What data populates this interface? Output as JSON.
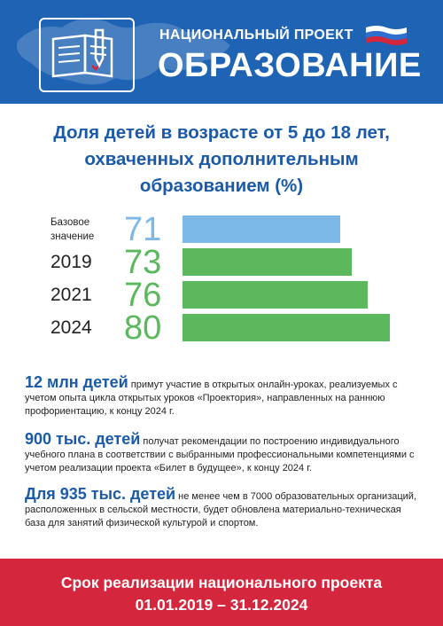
{
  "header": {
    "subtitle": "НАЦИОНАЛЬНЫЙ ПРОЕКТ",
    "title": "ОБРАЗОВАНИЕ",
    "colors": {
      "background": "#1f63b4",
      "flag_white": "#ffffff",
      "flag_blue": "#1f63b4",
      "flag_red": "#d4263d"
    },
    "logo_icon": "book-with-pen-icon"
  },
  "main_title_lines": [
    "Доля детей в возрасте от 5 до 18 лет,",
    "охваченных дополнительным",
    "образованием (%)"
  ],
  "chart_data": {
    "type": "bar",
    "orientation": "horizontal",
    "title": "Доля детей в возрасте от 5 до 18 лет, охваченных дополнительным образованием (%)",
    "categories": [
      "Базовое значение",
      "2019",
      "2021",
      "2024"
    ],
    "values": [
      71,
      73,
      76,
      80
    ],
    "rows": [
      {
        "label_line1": "Базовое",
        "label_line2": "значение",
        "label": "",
        "value": "71",
        "num": 71,
        "color": "#7cb9e8",
        "small": true
      },
      {
        "label_line1": "",
        "label_line2": "",
        "label": "2019",
        "value": "73",
        "num": 73,
        "color": "#5cb85c",
        "small": false
      },
      {
        "label_line1": "",
        "label_line2": "",
        "label": "2021",
        "value": "76",
        "num": 76,
        "color": "#5cb85c",
        "small": false
      },
      {
        "label_line1": "",
        "label_line2": "",
        "label": "2024",
        "value": "80",
        "num": 80,
        "color": "#5cb85c",
        "small": false
      }
    ],
    "grid": false,
    "legend": "none"
  },
  "facts": [
    {
      "highlight": "12 млн детей",
      "text": " примут участие в открытых онлайн-уроках, реализуемых с учетом опыта цикла открытых уроков «Проектория», направленных на раннюю профориентацию, к концу 2024 г."
    },
    {
      "highlight": "900 тыс. детей",
      "text": " получат рекомендации по построению индивидуального учебного плана в соответствии с выбранными профессиональными компетенциями с учетом реализации проекта «Билет в будущее», к концу 2024 г."
    },
    {
      "highlight": "Для 935 тыс. детей",
      "text": " не менее чем в 7000 образовательных организаций, расположенных в сельской местности, будет обновлена материально-техническая база для занятий физической культурой и спортом."
    }
  ],
  "footer": {
    "line1": "Срок реализации национального проекта",
    "line2": "01.01.2019 – 31.12.2024",
    "color": "#d4263d"
  }
}
